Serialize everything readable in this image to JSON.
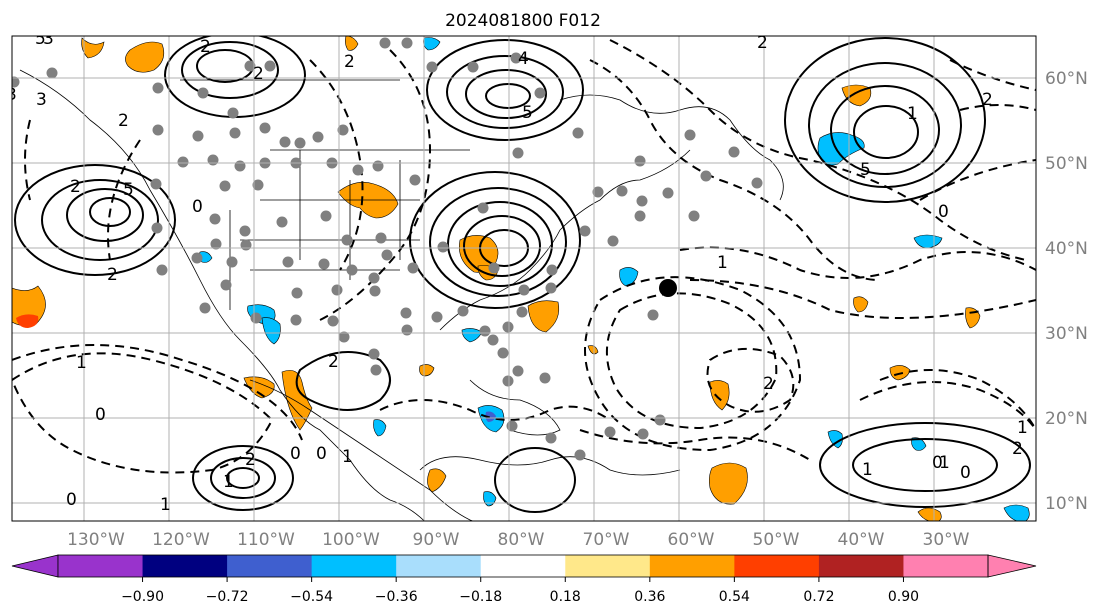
{
  "title": "2024081800 F012",
  "map": {
    "lon_labels": [
      "130°W",
      "120°W",
      "110°W",
      "100°W",
      "90°W",
      "80°W",
      "70°W",
      "60°W",
      "50°W",
      "40°W",
      "30°W"
    ],
    "lat_labels": [
      "60°N",
      "50°N",
      "40°N",
      "30°N",
      "20°N",
      "10°N"
    ],
    "contour_labels": [
      "5",
      "3",
      "3",
      "2",
      "2",
      "2",
      "5",
      "2",
      "2",
      "5",
      "2",
      "5",
      "3",
      "2",
      "4",
      "0",
      "2",
      "1",
      "0",
      "1",
      "0",
      "2",
      "1",
      "0",
      "0",
      "1",
      "2",
      "2",
      "1",
      "2",
      "1",
      "0",
      "1",
      "2",
      "1",
      "0",
      "0",
      "1"
    ],
    "grid": true
  },
  "colorbar": {
    "ticks": [
      "−0.90",
      "−0.72",
      "−0.54",
      "−0.36",
      "−0.18",
      "0.18",
      "0.36",
      "0.54",
      "0.72",
      "0.90"
    ],
    "colors": [
      "#9933cc",
      "#000080",
      "#3f5fcf",
      "#00bfff",
      "#a9defc",
      "#ffffff",
      "#ffe88a",
      "#ff9f00",
      "#ff3f00",
      "#b02222",
      "#ff80b0"
    ]
  }
}
